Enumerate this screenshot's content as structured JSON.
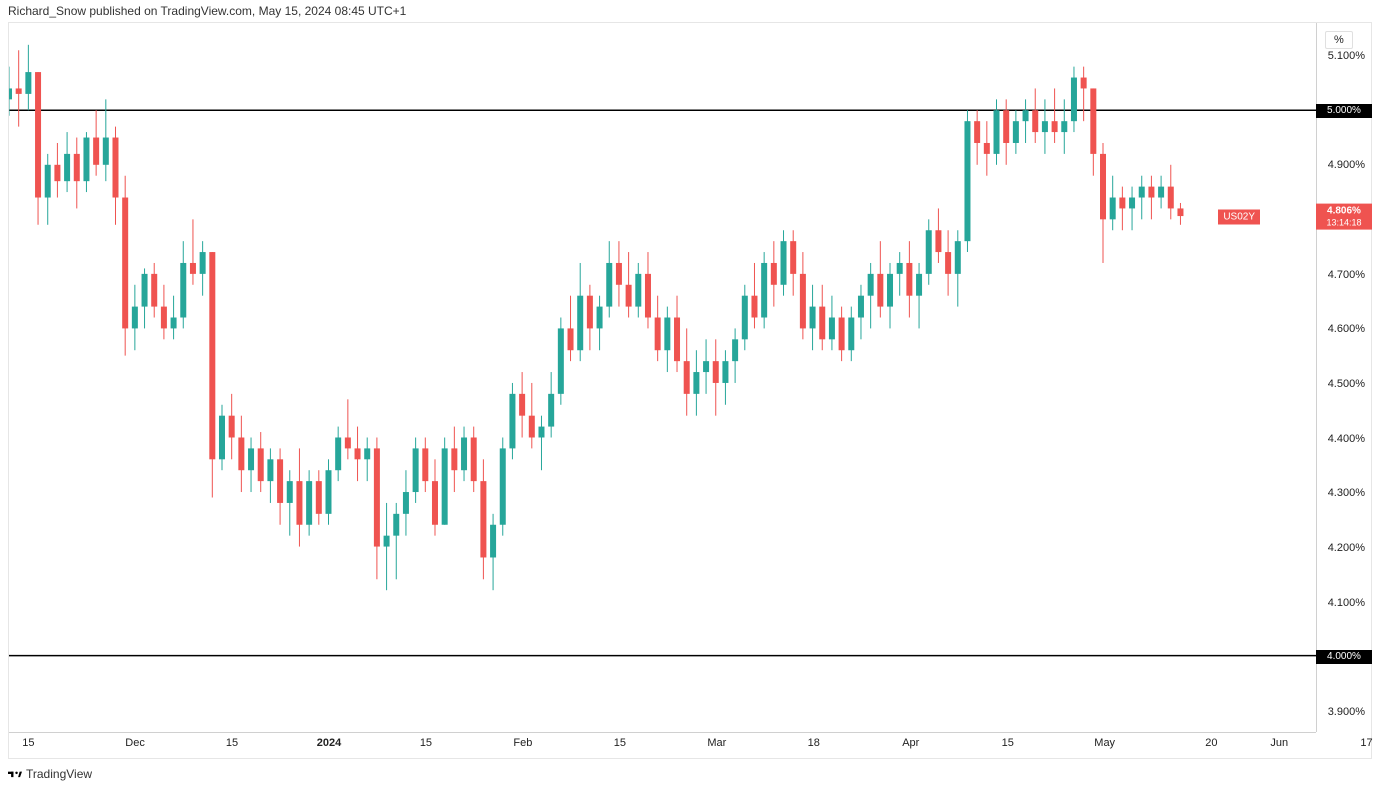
{
  "header": {
    "text": "Richard_Snow published on TradingView.com, May 15, 2024 08:45 UTC+1"
  },
  "footer": {
    "brand": "TradingView"
  },
  "chart": {
    "type": "candlestick",
    "unit_label": "%",
    "y": {
      "min": 3.86,
      "max": 5.16,
      "ticks": [
        {
          "v": 5.1,
          "label": "5.100%"
        },
        {
          "v": 4.9,
          "label": "4.900%"
        },
        {
          "v": 4.7,
          "label": "4.700%"
        },
        {
          "v": 4.6,
          "label": "4.600%"
        },
        {
          "v": 4.5,
          "label": "4.500%"
        },
        {
          "v": 4.4,
          "label": "4.400%"
        },
        {
          "v": 4.3,
          "label": "4.300%"
        },
        {
          "v": 4.2,
          "label": "4.200%"
        },
        {
          "v": 4.1,
          "label": "4.100%"
        },
        {
          "v": 3.9,
          "label": "3.900%"
        }
      ],
      "boxes": [
        {
          "v": 5.0,
          "label": "5.000%",
          "cls": "black"
        },
        {
          "v": 4.0,
          "label": "4.000%",
          "cls": "black"
        }
      ]
    },
    "price_tag": {
      "symbol": "US02Y",
      "price": "4.806%",
      "countdown": "13:14:18",
      "value": 4.806
    },
    "hlines": [
      5.0,
      4.0
    ],
    "x": {
      "min": 0,
      "max": 135,
      "ticks": [
        {
          "i": 2,
          "label": "15"
        },
        {
          "i": 13,
          "label": "Dec"
        },
        {
          "i": 23,
          "label": "15"
        },
        {
          "i": 33,
          "label": "2024",
          "bold": true
        },
        {
          "i": 43,
          "label": "15"
        },
        {
          "i": 53,
          "label": "Feb"
        },
        {
          "i": 63,
          "label": "15"
        },
        {
          "i": 73,
          "label": "Mar"
        },
        {
          "i": 83,
          "label": "18"
        },
        {
          "i": 93,
          "label": "Apr"
        },
        {
          "i": 103,
          "label": "15"
        },
        {
          "i": 113,
          "label": "May"
        },
        {
          "i": 124,
          "label": "20"
        },
        {
          "i": 131,
          "label": "Jun"
        },
        {
          "i": 140,
          "label": "17"
        }
      ]
    },
    "colors": {
      "up": "#26a69a",
      "down": "#ef5350",
      "wick": "#26a69a",
      "wick_down": "#ef5350"
    },
    "candles": [
      {
        "i": 0,
        "o": 5.02,
        "h": 5.08,
        "l": 4.99,
        "c": 5.04
      },
      {
        "i": 1,
        "o": 5.04,
        "h": 5.11,
        "l": 4.97,
        "c": 5.03
      },
      {
        "i": 2,
        "o": 5.03,
        "h": 5.12,
        "l": 5.0,
        "c": 5.07
      },
      {
        "i": 3,
        "o": 5.07,
        "h": 5.07,
        "l": 4.79,
        "c": 4.84
      },
      {
        "i": 4,
        "o": 4.84,
        "h": 4.92,
        "l": 4.79,
        "c": 4.9
      },
      {
        "i": 5,
        "o": 4.9,
        "h": 4.94,
        "l": 4.84,
        "c": 4.87
      },
      {
        "i": 6,
        "o": 4.87,
        "h": 4.96,
        "l": 4.85,
        "c": 4.92
      },
      {
        "i": 7,
        "o": 4.92,
        "h": 4.95,
        "l": 4.82,
        "c": 4.87
      },
      {
        "i": 8,
        "o": 4.87,
        "h": 4.96,
        "l": 4.85,
        "c": 4.95
      },
      {
        "i": 9,
        "o": 4.95,
        "h": 5.0,
        "l": 4.88,
        "c": 4.9
      },
      {
        "i": 10,
        "o": 4.9,
        "h": 5.02,
        "l": 4.87,
        "c": 4.95
      },
      {
        "i": 11,
        "o": 4.95,
        "h": 4.97,
        "l": 4.79,
        "c": 4.84
      },
      {
        "i": 12,
        "o": 4.84,
        "h": 4.88,
        "l": 4.55,
        "c": 4.6
      },
      {
        "i": 13,
        "o": 4.6,
        "h": 4.68,
        "l": 4.56,
        "c": 4.64
      },
      {
        "i": 14,
        "o": 4.64,
        "h": 4.71,
        "l": 4.6,
        "c": 4.7
      },
      {
        "i": 15,
        "o": 4.7,
        "h": 4.72,
        "l": 4.62,
        "c": 4.64
      },
      {
        "i": 16,
        "o": 4.64,
        "h": 4.68,
        "l": 4.58,
        "c": 4.6
      },
      {
        "i": 17,
        "o": 4.6,
        "h": 4.66,
        "l": 4.58,
        "c": 4.62
      },
      {
        "i": 18,
        "o": 4.62,
        "h": 4.76,
        "l": 4.6,
        "c": 4.72
      },
      {
        "i": 19,
        "o": 4.72,
        "h": 4.8,
        "l": 4.68,
        "c": 4.7
      },
      {
        "i": 20,
        "o": 4.7,
        "h": 4.76,
        "l": 4.66,
        "c": 4.74
      },
      {
        "i": 21,
        "o": 4.74,
        "h": 4.74,
        "l": 4.29,
        "c": 4.36
      },
      {
        "i": 22,
        "o": 4.36,
        "h": 4.46,
        "l": 4.34,
        "c": 4.44
      },
      {
        "i": 23,
        "o": 4.44,
        "h": 4.48,
        "l": 4.36,
        "c": 4.4
      },
      {
        "i": 24,
        "o": 4.4,
        "h": 4.44,
        "l": 4.3,
        "c": 4.34
      },
      {
        "i": 25,
        "o": 4.34,
        "h": 4.4,
        "l": 4.3,
        "c": 4.38
      },
      {
        "i": 26,
        "o": 4.38,
        "h": 4.41,
        "l": 4.3,
        "c": 4.32
      },
      {
        "i": 27,
        "o": 4.32,
        "h": 4.38,
        "l": 4.28,
        "c": 4.36
      },
      {
        "i": 28,
        "o": 4.36,
        "h": 4.38,
        "l": 4.24,
        "c": 4.28
      },
      {
        "i": 29,
        "o": 4.28,
        "h": 4.34,
        "l": 4.22,
        "c": 4.32
      },
      {
        "i": 30,
        "o": 4.32,
        "h": 4.38,
        "l": 4.2,
        "c": 4.24
      },
      {
        "i": 31,
        "o": 4.24,
        "h": 4.34,
        "l": 4.22,
        "c": 4.32
      },
      {
        "i": 32,
        "o": 4.32,
        "h": 4.34,
        "l": 4.24,
        "c": 4.26
      },
      {
        "i": 33,
        "o": 4.26,
        "h": 4.36,
        "l": 4.24,
        "c": 4.34
      },
      {
        "i": 34,
        "o": 4.34,
        "h": 4.42,
        "l": 4.32,
        "c": 4.4
      },
      {
        "i": 35,
        "o": 4.4,
        "h": 4.47,
        "l": 4.36,
        "c": 4.38
      },
      {
        "i": 36,
        "o": 4.38,
        "h": 4.42,
        "l": 4.32,
        "c": 4.36
      },
      {
        "i": 37,
        "o": 4.36,
        "h": 4.4,
        "l": 4.32,
        "c": 4.38
      },
      {
        "i": 38,
        "o": 4.38,
        "h": 4.4,
        "l": 4.14,
        "c": 4.2
      },
      {
        "i": 39,
        "o": 4.2,
        "h": 4.28,
        "l": 4.12,
        "c": 4.22
      },
      {
        "i": 40,
        "o": 4.22,
        "h": 4.28,
        "l": 4.14,
        "c": 4.26
      },
      {
        "i": 41,
        "o": 4.26,
        "h": 4.34,
        "l": 4.22,
        "c": 4.3
      },
      {
        "i": 42,
        "o": 4.3,
        "h": 4.4,
        "l": 4.28,
        "c": 4.38
      },
      {
        "i": 43,
        "o": 4.38,
        "h": 4.4,
        "l": 4.3,
        "c": 4.32
      },
      {
        "i": 44,
        "o": 4.32,
        "h": 4.36,
        "l": 4.22,
        "c": 4.24
      },
      {
        "i": 45,
        "o": 4.24,
        "h": 4.4,
        "l": 4.24,
        "c": 4.38
      },
      {
        "i": 46,
        "o": 4.38,
        "h": 4.42,
        "l": 4.3,
        "c": 4.34
      },
      {
        "i": 47,
        "o": 4.34,
        "h": 4.42,
        "l": 4.32,
        "c": 4.4
      },
      {
        "i": 48,
        "o": 4.4,
        "h": 4.42,
        "l": 4.3,
        "c": 4.32
      },
      {
        "i": 49,
        "o": 4.32,
        "h": 4.36,
        "l": 4.14,
        "c": 4.18
      },
      {
        "i": 50,
        "o": 4.18,
        "h": 4.26,
        "l": 4.12,
        "c": 4.24
      },
      {
        "i": 51,
        "o": 4.24,
        "h": 4.4,
        "l": 4.22,
        "c": 4.38
      },
      {
        "i": 52,
        "o": 4.38,
        "h": 4.5,
        "l": 4.36,
        "c": 4.48
      },
      {
        "i": 53,
        "o": 4.48,
        "h": 4.52,
        "l": 4.4,
        "c": 4.44
      },
      {
        "i": 54,
        "o": 4.44,
        "h": 4.5,
        "l": 4.38,
        "c": 4.4
      },
      {
        "i": 55,
        "o": 4.4,
        "h": 4.44,
        "l": 4.34,
        "c": 4.42
      },
      {
        "i": 56,
        "o": 4.42,
        "h": 4.52,
        "l": 4.4,
        "c": 4.48
      },
      {
        "i": 57,
        "o": 4.48,
        "h": 4.62,
        "l": 4.46,
        "c": 4.6
      },
      {
        "i": 58,
        "o": 4.6,
        "h": 4.66,
        "l": 4.54,
        "c": 4.56
      },
      {
        "i": 59,
        "o": 4.56,
        "h": 4.72,
        "l": 4.54,
        "c": 4.66
      },
      {
        "i": 60,
        "o": 4.66,
        "h": 4.68,
        "l": 4.56,
        "c": 4.6
      },
      {
        "i": 61,
        "o": 4.6,
        "h": 4.66,
        "l": 4.56,
        "c": 4.64
      },
      {
        "i": 62,
        "o": 4.64,
        "h": 4.76,
        "l": 4.62,
        "c": 4.72
      },
      {
        "i": 63,
        "o": 4.72,
        "h": 4.76,
        "l": 4.64,
        "c": 4.68
      },
      {
        "i": 64,
        "o": 4.68,
        "h": 4.74,
        "l": 4.62,
        "c": 4.64
      },
      {
        "i": 65,
        "o": 4.64,
        "h": 4.72,
        "l": 4.62,
        "c": 4.7
      },
      {
        "i": 66,
        "o": 4.7,
        "h": 4.74,
        "l": 4.6,
        "c": 4.62
      },
      {
        "i": 67,
        "o": 4.62,
        "h": 4.66,
        "l": 4.54,
        "c": 4.56
      },
      {
        "i": 68,
        "o": 4.56,
        "h": 4.64,
        "l": 4.52,
        "c": 4.62
      },
      {
        "i": 69,
        "o": 4.62,
        "h": 4.66,
        "l": 4.52,
        "c": 4.54
      },
      {
        "i": 70,
        "o": 4.54,
        "h": 4.6,
        "l": 4.44,
        "c": 4.48
      },
      {
        "i": 71,
        "o": 4.48,
        "h": 4.56,
        "l": 4.44,
        "c": 4.52
      },
      {
        "i": 72,
        "o": 4.52,
        "h": 4.58,
        "l": 4.48,
        "c": 4.54
      },
      {
        "i": 73,
        "o": 4.54,
        "h": 4.58,
        "l": 4.44,
        "c": 4.5
      },
      {
        "i": 74,
        "o": 4.5,
        "h": 4.56,
        "l": 4.46,
        "c": 4.54
      },
      {
        "i": 75,
        "o": 4.54,
        "h": 4.6,
        "l": 4.5,
        "c": 4.58
      },
      {
        "i": 76,
        "o": 4.58,
        "h": 4.68,
        "l": 4.56,
        "c": 4.66
      },
      {
        "i": 77,
        "o": 4.66,
        "h": 4.72,
        "l": 4.6,
        "c": 4.62
      },
      {
        "i": 78,
        "o": 4.62,
        "h": 4.74,
        "l": 4.6,
        "c": 4.72
      },
      {
        "i": 79,
        "o": 4.72,
        "h": 4.76,
        "l": 4.64,
        "c": 4.68
      },
      {
        "i": 80,
        "o": 4.68,
        "h": 4.78,
        "l": 4.66,
        "c": 4.76
      },
      {
        "i": 81,
        "o": 4.76,
        "h": 4.78,
        "l": 4.66,
        "c": 4.7
      },
      {
        "i": 82,
        "o": 4.7,
        "h": 4.74,
        "l": 4.58,
        "c": 4.6
      },
      {
        "i": 83,
        "o": 4.6,
        "h": 4.68,
        "l": 4.56,
        "c": 4.64
      },
      {
        "i": 84,
        "o": 4.64,
        "h": 4.68,
        "l": 4.56,
        "c": 4.58
      },
      {
        "i": 85,
        "o": 4.58,
        "h": 4.66,
        "l": 4.56,
        "c": 4.62
      },
      {
        "i": 86,
        "o": 4.62,
        "h": 4.64,
        "l": 4.54,
        "c": 4.56
      },
      {
        "i": 87,
        "o": 4.56,
        "h": 4.64,
        "l": 4.54,
        "c": 4.62
      },
      {
        "i": 88,
        "o": 4.62,
        "h": 4.68,
        "l": 4.58,
        "c": 4.66
      },
      {
        "i": 89,
        "o": 4.66,
        "h": 4.72,
        "l": 4.6,
        "c": 4.7
      },
      {
        "i": 90,
        "o": 4.7,
        "h": 4.76,
        "l": 4.62,
        "c": 4.64
      },
      {
        "i": 91,
        "o": 4.64,
        "h": 4.72,
        "l": 4.6,
        "c": 4.7
      },
      {
        "i": 92,
        "o": 4.7,
        "h": 4.74,
        "l": 4.66,
        "c": 4.72
      },
      {
        "i": 93,
        "o": 4.72,
        "h": 4.76,
        "l": 4.62,
        "c": 4.66
      },
      {
        "i": 94,
        "o": 4.66,
        "h": 4.72,
        "l": 4.6,
        "c": 4.7
      },
      {
        "i": 95,
        "o": 4.7,
        "h": 4.8,
        "l": 4.68,
        "c": 4.78
      },
      {
        "i": 96,
        "o": 4.78,
        "h": 4.82,
        "l": 4.72,
        "c": 4.74
      },
      {
        "i": 97,
        "o": 4.74,
        "h": 4.78,
        "l": 4.66,
        "c": 4.7
      },
      {
        "i": 98,
        "o": 4.7,
        "h": 4.78,
        "l": 4.64,
        "c": 4.76
      },
      {
        "i": 99,
        "o": 4.76,
        "h": 5.0,
        "l": 4.74,
        "c": 4.98
      },
      {
        "i": 100,
        "o": 4.98,
        "h": 5.0,
        "l": 4.9,
        "c": 4.94
      },
      {
        "i": 101,
        "o": 4.94,
        "h": 4.98,
        "l": 4.88,
        "c": 4.92
      },
      {
        "i": 102,
        "o": 4.92,
        "h": 5.02,
        "l": 4.9,
        "c": 5.0
      },
      {
        "i": 103,
        "o": 5.0,
        "h": 5.02,
        "l": 4.9,
        "c": 4.94
      },
      {
        "i": 104,
        "o": 4.94,
        "h": 5.0,
        "l": 4.92,
        "c": 4.98
      },
      {
        "i": 105,
        "o": 4.98,
        "h": 5.02,
        "l": 4.94,
        "c": 5.0
      },
      {
        "i": 106,
        "o": 5.0,
        "h": 5.04,
        "l": 4.94,
        "c": 4.96
      },
      {
        "i": 107,
        "o": 4.96,
        "h": 5.02,
        "l": 4.92,
        "c": 4.98
      },
      {
        "i": 108,
        "o": 4.98,
        "h": 5.04,
        "l": 4.94,
        "c": 4.96
      },
      {
        "i": 109,
        "o": 4.96,
        "h": 5.02,
        "l": 4.92,
        "c": 4.98
      },
      {
        "i": 110,
        "o": 4.98,
        "h": 5.08,
        "l": 4.96,
        "c": 5.06
      },
      {
        "i": 111,
        "o": 5.06,
        "h": 5.08,
        "l": 4.98,
        "c": 5.04
      },
      {
        "i": 112,
        "o": 5.04,
        "h": 5.04,
        "l": 4.88,
        "c": 4.92
      },
      {
        "i": 113,
        "o": 4.92,
        "h": 4.94,
        "l": 4.72,
        "c": 4.8
      },
      {
        "i": 114,
        "o": 4.8,
        "h": 4.88,
        "l": 4.78,
        "c": 4.84
      },
      {
        "i": 115,
        "o": 4.84,
        "h": 4.86,
        "l": 4.78,
        "c": 4.82
      },
      {
        "i": 116,
        "o": 4.82,
        "h": 4.86,
        "l": 4.78,
        "c": 4.84
      },
      {
        "i": 117,
        "o": 4.84,
        "h": 4.88,
        "l": 4.8,
        "c": 4.86
      },
      {
        "i": 118,
        "o": 4.86,
        "h": 4.88,
        "l": 4.8,
        "c": 4.84
      },
      {
        "i": 119,
        "o": 4.84,
        "h": 4.88,
        "l": 4.82,
        "c": 4.86
      },
      {
        "i": 120,
        "o": 4.86,
        "h": 4.9,
        "l": 4.8,
        "c": 4.82
      },
      {
        "i": 121,
        "o": 4.82,
        "h": 4.83,
        "l": 4.79,
        "c": 4.806
      }
    ]
  }
}
